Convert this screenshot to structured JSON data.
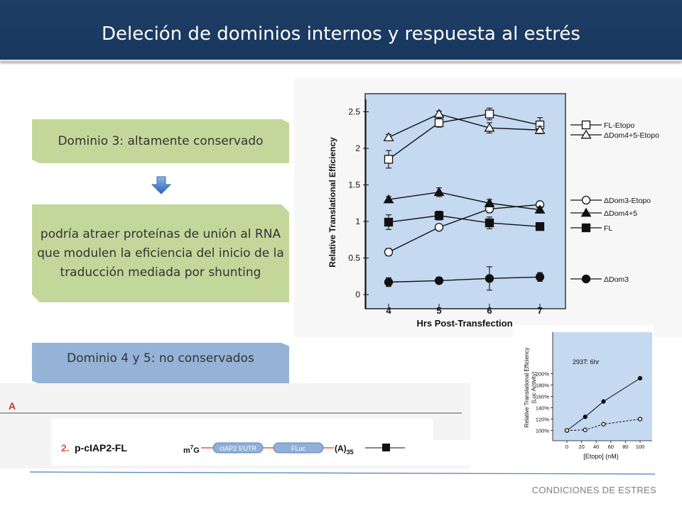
{
  "slide": {
    "title": "Deleción de dominios internos y respuesta al estrés",
    "footer": "CONDICIONES DE ESTRES"
  },
  "boxes": {
    "domain3": "Dominio 3: altamente conservado",
    "function": "podría atraer proteínas de unión al RNA que modulen la eficiencia del inicio de la traducción mediada por shunting",
    "domain45": "Dominio 4 y 5: no conservados"
  },
  "icons": {
    "arrow": "down-arrow-icon"
  },
  "colors": {
    "title_bg": "#17375e",
    "green_box": "#c4d79b",
    "blue_box": "#95b3d7",
    "plot_bg": "#c5d9f1"
  },
  "construct": {
    "panel_letter": "A",
    "number": "2.",
    "name": "p-cIAP2-FL",
    "cap": "m",
    "cap_sup": "7",
    "cap_g": "G",
    "utr": "cIAP2 5'UTR",
    "reporter": "FLuc",
    "polya": "(A)",
    "polya_sub": "35"
  },
  "chart_data": [
    {
      "type": "line",
      "xlabel": "Hrs Post-Transfection",
      "ylabel": "Relative Translational Efficiency",
      "x": [
        4,
        5,
        6,
        7
      ],
      "xticks": [
        "4",
        "5",
        "6",
        "7"
      ],
      "yticks": [
        "0",
        "0.5",
        "1",
        "1.5",
        "2",
        "2.5"
      ],
      "ylim": [
        0,
        2.6
      ],
      "legend_position": "right",
      "series": [
        {
          "name": "FL-Etopo",
          "marker": "open-square",
          "values": [
            1.85,
            2.35,
            2.47,
            2.32
          ],
          "errors": [
            0.12,
            0.06,
            0.08,
            0.1
          ]
        },
        {
          "name": "ΔDom4+5-Etopo",
          "marker": "open-triangle",
          "values": [
            2.15,
            2.47,
            2.28,
            2.25
          ],
          "errors": [
            0.04,
            0.04,
            0.07,
            0.05
          ]
        },
        {
          "name": "ΔDom3-Etopo",
          "marker": "open-circle",
          "values": [
            0.58,
            0.92,
            1.17,
            1.23
          ],
          "errors": [
            0.05,
            0.03,
            0.05,
            0.04
          ]
        },
        {
          "name": "ΔDom4+5",
          "marker": "filled-triangle",
          "values": [
            1.3,
            1.4,
            1.25,
            1.16
          ],
          "errors": [
            0.04,
            0.06,
            0.05,
            0.04
          ]
        },
        {
          "name": "FL",
          "marker": "filled-square",
          "values": [
            0.99,
            1.08,
            0.98,
            0.93
          ],
          "errors": [
            0.1,
            0.06,
            0.08,
            0.02
          ]
        },
        {
          "name": "ΔDom3",
          "marker": "filled-circle",
          "values": [
            0.17,
            0.19,
            0.22,
            0.24
          ],
          "errors": [
            0.06,
            0.04,
            0.16,
            0.06
          ]
        }
      ]
    },
    {
      "type": "line",
      "annotation": "293T: 6hr",
      "xlabel": "[Etopo] (nM)",
      "ylabel": "Relative Translational Efficiency",
      "ylabel2": "(Luc Activity)",
      "x": [
        0,
        25,
        50,
        100
      ],
      "xticks": [
        "0",
        "20",
        "40",
        "60",
        "80",
        "100"
      ],
      "yticks": [
        "100%",
        "120%",
        "140%",
        "160%",
        "180%",
        "200%"
      ],
      "xlim": [
        -7,
        110
      ],
      "ylim": [
        95,
        200
      ],
      "series": [
        {
          "values": [
            100,
            124,
            151,
            192
          ],
          "marker": "filled-circle",
          "style": "solid"
        },
        {
          "values": [
            100,
            101,
            111,
            120
          ],
          "marker": "open-circle",
          "style": "dashed"
        }
      ]
    }
  ]
}
